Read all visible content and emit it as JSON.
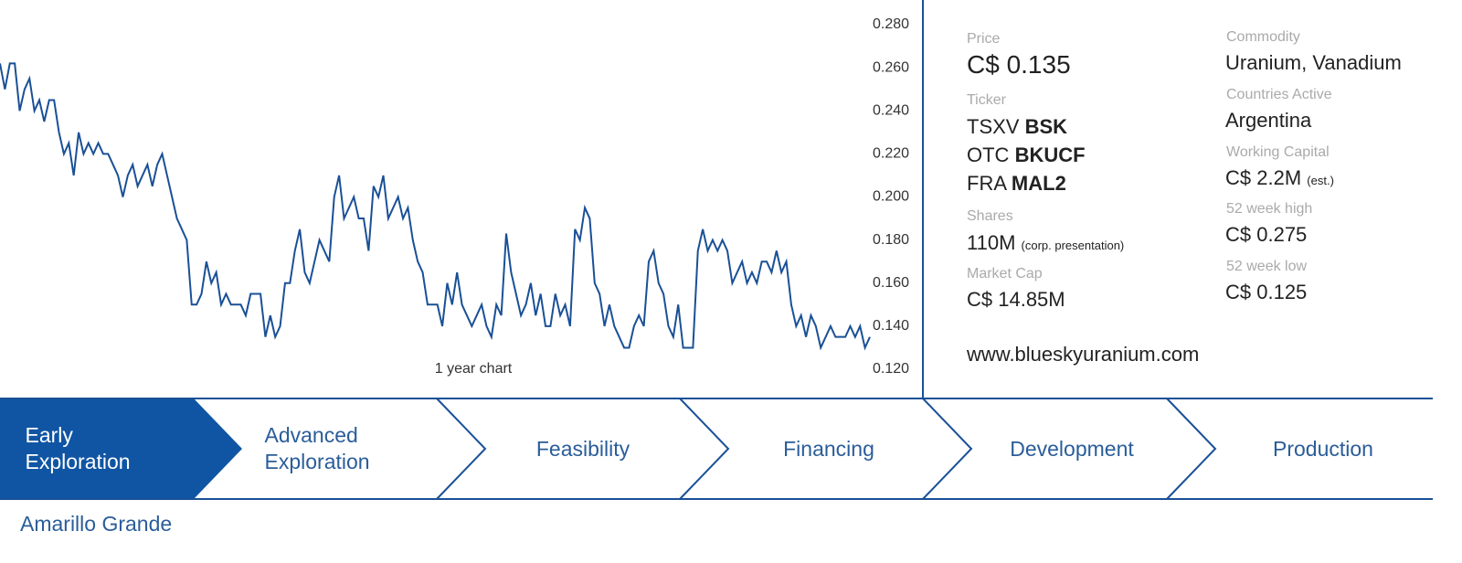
{
  "chart_data": {
    "type": "line",
    "xlabel": "1 year chart",
    "color": "#1a5096",
    "values": [
      0.262,
      0.25,
      0.262,
      0.262,
      0.24,
      0.25,
      0.255,
      0.24,
      0.245,
      0.235,
      0.245,
      0.245,
      0.23,
      0.22,
      0.225,
      0.21,
      0.23,
      0.22,
      0.225,
      0.22,
      0.225,
      0.22,
      0.22,
      0.215,
      0.21,
      0.2,
      0.21,
      0.215,
      0.205,
      0.21,
      0.215,
      0.205,
      0.215,
      0.22,
      0.21,
      0.2,
      0.19,
      0.185,
      0.18,
      0.15,
      0.15,
      0.155,
      0.17,
      0.16,
      0.165,
      0.15,
      0.155,
      0.15,
      0.15,
      0.15,
      0.145,
      0.155,
      0.155,
      0.155,
      0.135,
      0.145,
      0.135,
      0.14,
      0.16,
      0.16,
      0.175,
      0.185,
      0.165,
      0.16,
      0.17,
      0.18,
      0.175,
      0.17,
      0.2,
      0.21,
      0.19,
      0.195,
      0.2,
      0.19,
      0.19,
      0.175,
      0.205,
      0.2,
      0.21,
      0.19,
      0.195,
      0.2,
      0.19,
      0.195,
      0.18,
      0.17,
      0.165,
      0.15,
      0.15,
      0.15,
      0.14,
      0.16,
      0.15,
      0.165,
      0.15,
      0.145,
      0.14,
      0.145,
      0.15,
      0.14,
      0.135,
      0.15,
      0.145,
      0.183,
      0.165,
      0.155,
      0.145,
      0.15,
      0.16,
      0.145,
      0.155,
      0.14,
      0.14,
      0.155,
      0.145,
      0.15,
      0.14,
      0.185,
      0.18,
      0.195,
      0.19,
      0.16,
      0.155,
      0.14,
      0.15,
      0.14,
      0.135,
      0.13,
      0.13,
      0.14,
      0.145,
      0.14,
      0.17,
      0.175,
      0.16,
      0.155,
      0.14,
      0.135,
      0.15,
      0.13,
      0.13,
      0.13,
      0.175,
      0.185,
      0.175,
      0.18,
      0.175,
      0.18,
      0.175,
      0.16,
      0.165,
      0.17,
      0.16,
      0.165,
      0.16,
      0.17,
      0.17,
      0.165,
      0.175,
      0.165,
      0.17,
      0.15,
      0.14,
      0.145,
      0.135,
      0.145,
      0.14,
      0.13,
      0.135,
      0.14,
      0.135,
      0.135,
      0.135,
      0.14,
      0.135,
      0.14,
      0.13,
      0.135
    ],
    "ylim": [
      0.12,
      0.28
    ],
    "yticks": [
      {
        "value": 0.12,
        "label": "0.120"
      },
      {
        "value": 0.14,
        "label": "0.140"
      },
      {
        "value": 0.16,
        "label": "0.160"
      },
      {
        "value": 0.18,
        "label": "0.180"
      },
      {
        "value": 0.2,
        "label": "0.200"
      },
      {
        "value": 0.22,
        "label": "0.220"
      },
      {
        "value": 0.24,
        "label": "0.240"
      },
      {
        "value": 0.26,
        "label": "0.260"
      },
      {
        "value": 0.28,
        "label": "0.280"
      }
    ]
  },
  "info": {
    "price": {
      "label": "Price",
      "value": "C$ 0.135"
    },
    "ticker": {
      "label": "Ticker",
      "items": [
        {
          "exchange": "TSXV",
          "symbol": "BSK"
        },
        {
          "exchange": "OTC",
          "symbol": "BKUCF"
        },
        {
          "exchange": "FRA",
          "symbol": "MAL2"
        }
      ]
    },
    "shares": {
      "label": "Shares",
      "value": "110M",
      "note": "(corp. presentation)"
    },
    "market_cap": {
      "label": "Market Cap",
      "value": "C$ 14.85M"
    },
    "commodity": {
      "label": "Commodity",
      "value": "Uranium, Vanadium"
    },
    "countries": {
      "label": "Countries Active",
      "value": "Argentina"
    },
    "working_capital": {
      "label": "Working Capital",
      "value": "C$ 2.2M",
      "note": "(est.)"
    },
    "high": {
      "label": "52 week high",
      "value": "C$ 0.275"
    },
    "low": {
      "label": "52 week low",
      "value": "C$ 0.125"
    },
    "website": "www.blueskyuranium.com"
  },
  "stages": [
    "Early Exploration",
    "Advanced Exploration",
    "Feasibility",
    "Financing",
    "Development",
    "Production"
  ],
  "project": "Amarillo Grande"
}
